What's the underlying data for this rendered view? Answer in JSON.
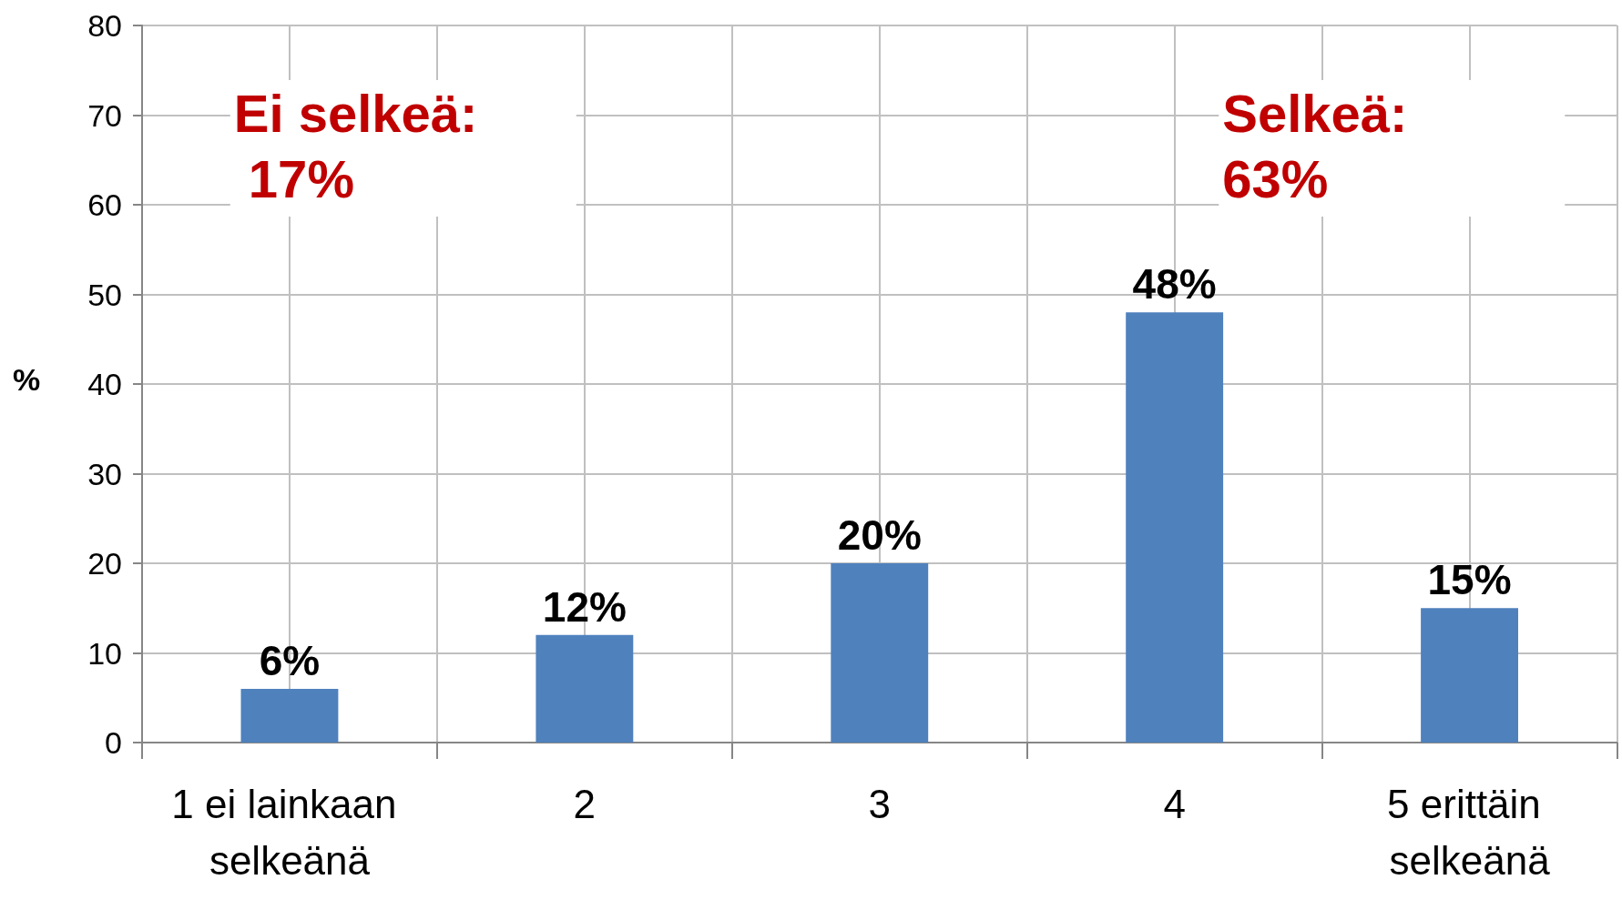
{
  "chart_data": {
    "type": "bar",
    "categories": [
      "1 ei lainkaan selkeänä",
      "2",
      "3",
      "4",
      "5 erittäin selkeänä"
    ],
    "values": [
      6,
      12,
      20,
      48,
      15
    ],
    "value_labels": [
      "6%",
      "12%",
      "20%",
      "48%",
      "15%"
    ],
    "color": "#4f81bd",
    "ylabel": "%",
    "ylim": [
      0,
      80
    ],
    "yticks": [
      0,
      10,
      20,
      30,
      40,
      50,
      60,
      70,
      80
    ],
    "grid": true,
    "annotations": [
      "Ei selkeä: 17%",
      "Selkeä: 63%"
    ]
  }
}
